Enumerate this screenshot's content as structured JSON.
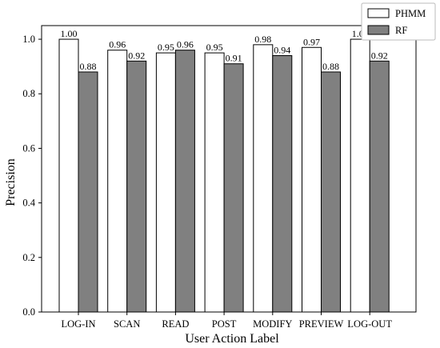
{
  "chart_data": {
    "type": "bar",
    "xlabel": "User Action Label",
    "ylabel": "Precision",
    "ylim": [
      0.0,
      1.05
    ],
    "yticks": [
      0.0,
      0.2,
      0.4,
      0.6,
      0.8,
      1.0
    ],
    "ytick_labels": [
      "0.0",
      "0.2",
      "0.4",
      "0.6",
      "0.8",
      "1.0"
    ],
    "grid": false,
    "legend_position": "top-right, outside plot",
    "categories": [
      "LOG-IN",
      "SCAN",
      "READ",
      "POST",
      "MODIFY",
      "PREVIEW",
      "LOG-OUT"
    ],
    "series": [
      {
        "name": "PHMM",
        "color": "#ffffff",
        "values": [
          1.0,
          0.96,
          0.95,
          0.95,
          0.98,
          0.97,
          1.0
        ],
        "labels": [
          "1.00",
          "0.96",
          "0.95",
          "0.95",
          "0.98",
          "0.97",
          "1.00"
        ]
      },
      {
        "name": "RF",
        "color": "#808080",
        "values": [
          0.88,
          0.92,
          0.96,
          0.91,
          0.94,
          0.88,
          0.92
        ],
        "labels": [
          "0.88",
          "0.92",
          "0.96",
          "0.91",
          "0.94",
          "0.88",
          "0.92"
        ]
      }
    ]
  }
}
